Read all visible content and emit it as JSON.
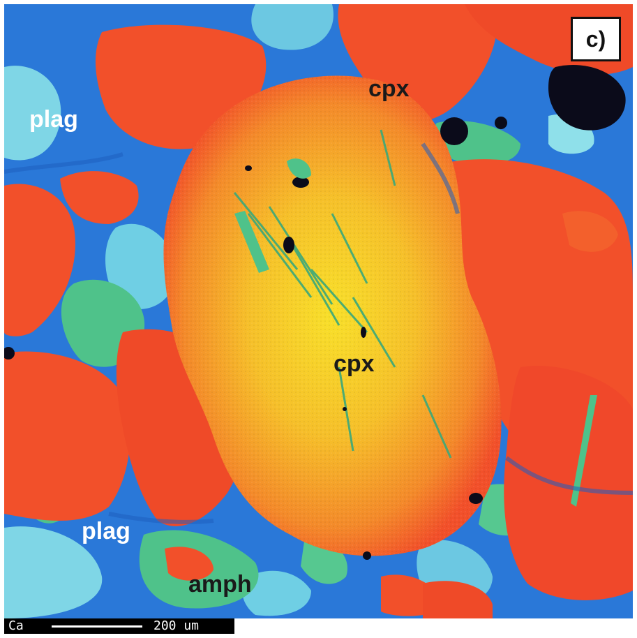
{
  "panel_label": "c)",
  "labels": {
    "plag_top": "plag",
    "cpx_top": "cpx",
    "cpx_center": "cpx",
    "plag_bottom": "plag",
    "amph": "amph"
  },
  "scale_bar": {
    "element": "Ca",
    "length_text": "200 um"
  },
  "colors": {
    "plag_light": "#7fd6e6",
    "plag_blue": "#2a78d8",
    "amph_green": "#4fc28a",
    "cpx_red": "#f2502a",
    "cpx_core": "#f6d22a",
    "void_black": "#0b0b1a"
  }
}
